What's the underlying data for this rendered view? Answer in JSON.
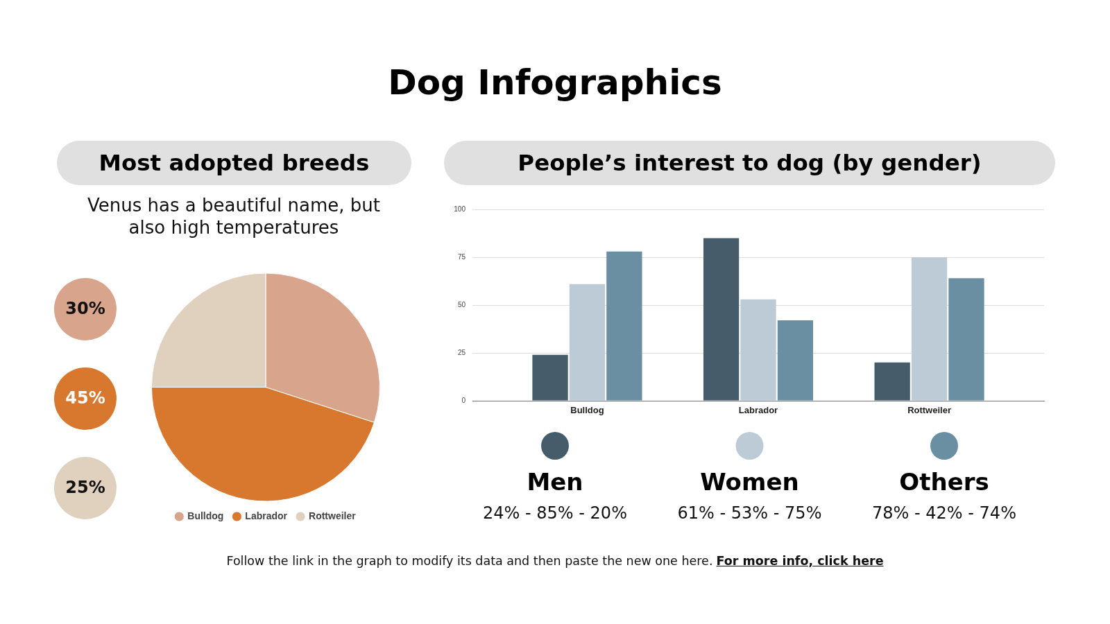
{
  "chart_data": [
    {
      "type": "pie",
      "title": "Most adopted breeds",
      "subtitle": "Venus has a beautiful name, but also high temperatures",
      "categories": [
        "Bulldog",
        "Labrador",
        "Rottweiler"
      ],
      "values": [
        30,
        45,
        25
      ],
      "colors": [
        "#d8a48c",
        "#d8782f",
        "#e0d1bf"
      ],
      "legend": "bottom",
      "annotations": [
        "Dog Infographics",
        "30%",
        "45%",
        "25%"
      ]
    },
    {
      "type": "bar",
      "title": "People’s interest to dog (by gender)",
      "categories": [
        "Bulldog",
        "Labrador",
        "Rottweiler"
      ],
      "series": [
        {
          "name": "Men",
          "color": "#465c6b",
          "values": [
            24,
            85,
            20
          ]
        },
        {
          "name": "Women",
          "color": "#bccbd5",
          "values": [
            61,
            53,
            75
          ]
        },
        {
          "name": "Others",
          "color": "#6a8ea2",
          "values": [
            78,
            42,
            64
          ]
        }
      ],
      "ylim": [
        0,
        100
      ],
      "yticks": [
        0,
        25,
        50,
        75,
        100
      ],
      "grid": "y",
      "legend": "bottom",
      "annotations": [
        "24% - 85% - 20%",
        "61% - 53% - 75%",
        "78% - 42% - 74%",
        "Follow the link in the graph to modify its data and then paste the new one here.",
        "For more info, click here"
      ]
    }
  ]
}
